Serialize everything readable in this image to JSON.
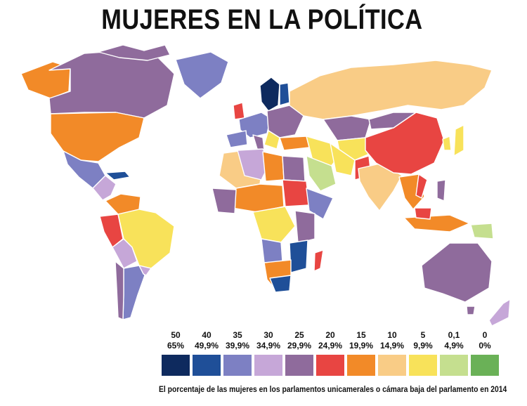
{
  "title": "MUJERES EN LA POLÍTICA",
  "legend": [
    {
      "from": "50",
      "to": "65%",
      "color": "#0e2a5e"
    },
    {
      "from": "40",
      "to": "49,9%",
      "color": "#1f4f98"
    },
    {
      "from": "35",
      "to": "39,9%",
      "color": "#7d80c3"
    },
    {
      "from": "30",
      "to": "34,9%",
      "color": "#c6a7d8"
    },
    {
      "from": "25",
      "to": "29,9%",
      "color": "#8f6b9c"
    },
    {
      "from": "20",
      "to": "24,9%",
      "color": "#e84542"
    },
    {
      "from": "15",
      "to": "19,9%",
      "color": "#f28a28"
    },
    {
      "from": "10",
      "to": "14,9%",
      "color": "#f9cc86"
    },
    {
      "from": "5",
      "to": "9,9%",
      "color": "#f8e25a"
    },
    {
      "from": "0,1",
      "to": "4,9%",
      "color": "#c5df8f"
    },
    {
      "from": "0",
      "to": "0%",
      "color": "#6ab157"
    }
  ],
  "caption": "El porcentaje de las mujeres en los parlamentos unicamerales o cámara baja del parlamento en 2014"
}
